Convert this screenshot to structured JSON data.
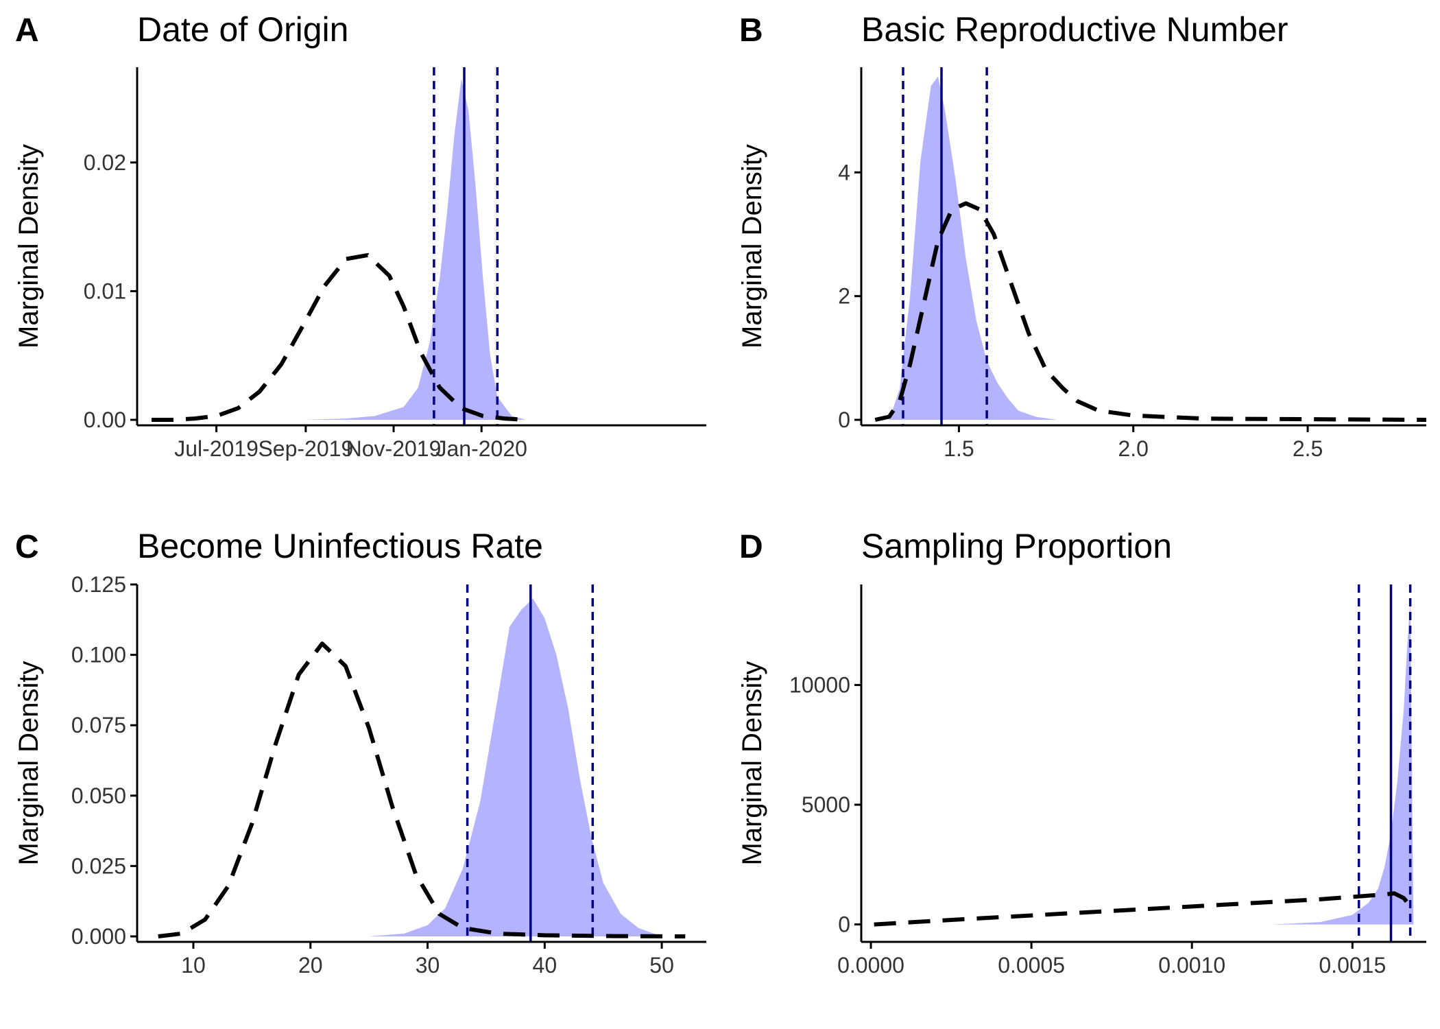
{
  "colors": {
    "posterior_fill": "#b3b3ff",
    "prior_line": "#000000",
    "hpd_line": "#000080"
  },
  "chart_data": [
    {
      "type": "area",
      "letter": "A",
      "title": "Date of Origin",
      "xlabel": "",
      "ylabel": "Marginal Density",
      "x_is_date": true,
      "xlim": [
        -25,
        370
      ],
      "ylim": [
        0,
        0.0274
      ],
      "xticks": [
        {
          "value": 30,
          "label": "Jul-2019"
        },
        {
          "value": 92,
          "label": "Sep-2019"
        },
        {
          "value": 153,
          "label": "Nov-2019"
        },
        {
          "value": 214,
          "label": "Jan-2020"
        }
      ],
      "yticks": [
        {
          "value": 0,
          "label": "0.00"
        },
        {
          "value": 0.01,
          "label": "0.01"
        },
        {
          "value": 0.02,
          "label": "0.02"
        }
      ],
      "posterior": {
        "x": [
          90,
          120,
          140,
          160,
          170,
          178,
          185,
          190,
          195,
          200,
          205,
          210,
          215,
          220,
          225,
          235,
          245
        ],
        "y": [
          0,
          0.0001,
          0.0003,
          0.001,
          0.0025,
          0.006,
          0.011,
          0.016,
          0.022,
          0.0265,
          0.024,
          0.018,
          0.011,
          0.005,
          0.0018,
          0.0003,
          0
        ]
      },
      "prior": {
        "x": [
          -15,
          0,
          15,
          30,
          45,
          60,
          75,
          90,
          105,
          120,
          135,
          150,
          160,
          172,
          185,
          200,
          215,
          230,
          245
        ],
        "y": [
          0,
          0,
          0.0001,
          0.0003,
          0.0009,
          0.0022,
          0.0043,
          0.0073,
          0.0104,
          0.0125,
          0.0128,
          0.0112,
          0.0088,
          0.0052,
          0.0025,
          0.0009,
          0.0003,
          0.0001,
          0
        ]
      },
      "hpd_median": 202,
      "hpd_lower": 181,
      "hpd_upper": 225
    },
    {
      "type": "area",
      "letter": "B",
      "title": "Basic Reproductive Number",
      "xlabel": "",
      "ylabel": "Marginal Density",
      "xlim": [
        1.22,
        2.84
      ],
      "ylim": [
        0,
        5.7
      ],
      "xticks": [
        {
          "value": 1.5,
          "label": "1.5"
        },
        {
          "value": 2.0,
          "label": "2.0"
        },
        {
          "value": 2.5,
          "label": "2.5"
        }
      ],
      "yticks": [
        {
          "value": 0,
          "label": "0"
        },
        {
          "value": 2,
          "label": "2"
        },
        {
          "value": 4,
          "label": "4"
        }
      ],
      "posterior": {
        "x": [
          1.3,
          1.33,
          1.36,
          1.39,
          1.42,
          1.44,
          1.46,
          1.49,
          1.52,
          1.55,
          1.58,
          1.61,
          1.64,
          1.67,
          1.72,
          1.78
        ],
        "y": [
          0,
          0.5,
          2.0,
          4.2,
          5.4,
          5.55,
          5.0,
          3.9,
          2.6,
          1.6,
          0.95,
          0.6,
          0.35,
          0.15,
          0.05,
          0
        ]
      },
      "prior": {
        "x": [
          1.26,
          1.3,
          1.33,
          1.36,
          1.4,
          1.44,
          1.48,
          1.52,
          1.56,
          1.6,
          1.65,
          1.7,
          1.75,
          1.8,
          1.84,
          1.9,
          2.0,
          2.2,
          2.5,
          2.84
        ],
        "y": [
          0,
          0.05,
          0.3,
          0.9,
          1.9,
          2.9,
          3.4,
          3.5,
          3.4,
          3.0,
          2.2,
          1.4,
          0.8,
          0.5,
          0.3,
          0.15,
          0.07,
          0.02,
          0.01,
          0
        ]
      },
      "hpd_median": 1.45,
      "hpd_lower": 1.34,
      "hpd_upper": 1.58
    },
    {
      "type": "area",
      "letter": "C",
      "title": "Become Uninfectious Rate",
      "xlabel": "",
      "ylabel": "Marginal Density",
      "xlim": [
        5.2,
        53.8
      ],
      "ylim": [
        0,
        0.125
      ],
      "xticks": [
        {
          "value": 10,
          "label": "10"
        },
        {
          "value": 20,
          "label": "20"
        },
        {
          "value": 30,
          "label": "30"
        },
        {
          "value": 40,
          "label": "40"
        },
        {
          "value": 50,
          "label": "50"
        }
      ],
      "yticks": [
        {
          "value": 0,
          "label": "0.000"
        },
        {
          "value": 0.025,
          "label": "0.025"
        },
        {
          "value": 0.05,
          "label": "0.050"
        },
        {
          "value": 0.075,
          "label": "0.075"
        },
        {
          "value": 0.1,
          "label": "0.100"
        },
        {
          "value": 0.125,
          "label": "0.125"
        }
      ],
      "posterior": {
        "x": [
          25,
          28,
          30,
          31.5,
          33,
          34.5,
          36,
          37,
          38,
          39,
          40,
          41,
          42,
          43,
          44,
          45,
          46.5,
          48,
          50
        ],
        "y": [
          0,
          0.001,
          0.004,
          0.01,
          0.024,
          0.048,
          0.085,
          0.11,
          0.116,
          0.12,
          0.113,
          0.1,
          0.081,
          0.056,
          0.035,
          0.019,
          0.008,
          0.003,
          0
        ]
      },
      "prior": {
        "x": [
          7,
          9,
          11,
          13,
          15,
          17,
          19,
          21,
          23,
          25,
          27,
          29,
          31,
          33,
          36,
          40,
          46,
          52
        ],
        "y": [
          0,
          0.001,
          0.006,
          0.018,
          0.04,
          0.068,
          0.093,
          0.104,
          0.096,
          0.074,
          0.046,
          0.022,
          0.008,
          0.003,
          0.001,
          0.0004,
          0.0001,
          0
        ]
      },
      "hpd_median": 38.8,
      "hpd_lower": 33.4,
      "hpd_upper": 44.1
    },
    {
      "type": "area",
      "letter": "D",
      "title": "Sampling Proportion",
      "xlabel": "",
      "ylabel": "Marginal Density",
      "xlim": [
        -3e-05,
        0.00173
      ],
      "ylim": [
        -500,
        14200
      ],
      "xticks": [
        {
          "value": 0,
          "label": "0.0000"
        },
        {
          "value": 0.0005,
          "label": "0.0005"
        },
        {
          "value": 0.001,
          "label": "0.0010"
        },
        {
          "value": 0.0015,
          "label": "0.0015"
        }
      ],
      "yticks": [
        {
          "value": 0,
          "label": "0"
        },
        {
          "value": 5000,
          "label": "5000"
        },
        {
          "value": 10000,
          "label": "10000"
        }
      ],
      "posterior": {
        "x": [
          0.00125,
          0.0014,
          0.0015,
          0.00155,
          0.00158,
          0.0016,
          0.00162,
          0.00164,
          0.00166,
          0.00167,
          0.00168,
          0.00169
        ],
        "y": [
          0,
          100,
          400,
          900,
          1500,
          2400,
          3800,
          6000,
          9000,
          11500,
          13500,
          0
        ]
      },
      "prior": {
        "x": [
          1e-05,
          0.0002,
          0.0004,
          0.0006,
          0.0008,
          0.001,
          0.0012,
          0.0014,
          0.0015,
          0.0016,
          0.00163,
          0.00166,
          0.00169
        ],
        "y": [
          0,
          150,
          300,
          450,
          600,
          750,
          900,
          1050,
          1150,
          1250,
          1300,
          1100,
          600
        ]
      },
      "hpd_median": 0.00162,
      "hpd_lower": 0.00152,
      "hpd_upper": 0.00168
    }
  ]
}
